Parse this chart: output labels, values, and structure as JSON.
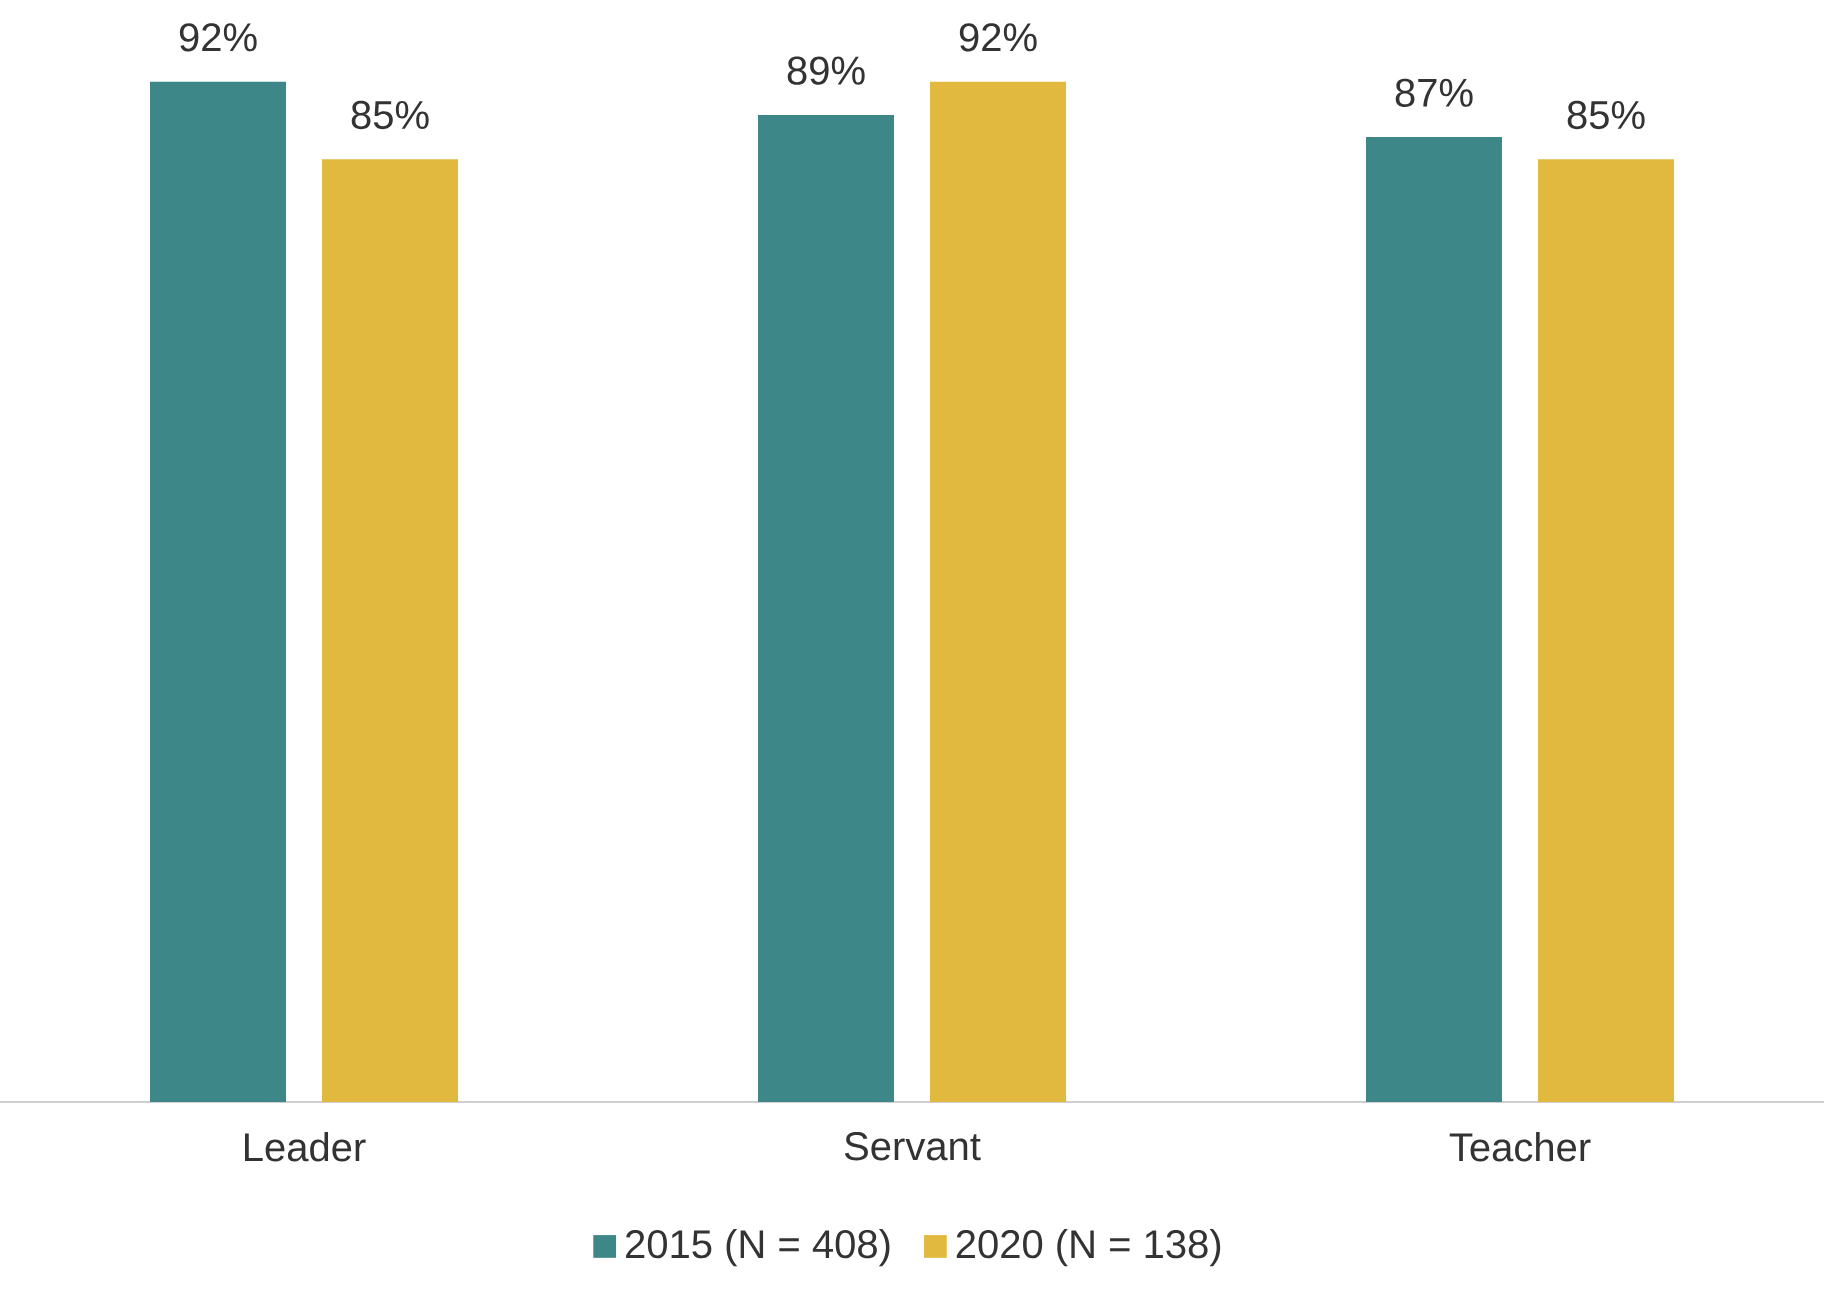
{
  "chart_data": {
    "type": "bar",
    "categories": [
      "Leader",
      "Servant",
      "Teacher"
    ],
    "series": [
      {
        "name": "2015 (N = 408)",
        "color": "#3d8789",
        "values": [
          92,
          89,
          87
        ],
        "value_labels": [
          "92%",
          "89%",
          "87%"
        ]
      },
      {
        "name": "2020 (N = 138)",
        "color": "#e2b93f",
        "values": [
          85,
          92,
          85
        ],
        "value_labels": [
          "85%",
          "92%",
          "85%"
        ]
      }
    ],
    "legend": "bottom"
  }
}
